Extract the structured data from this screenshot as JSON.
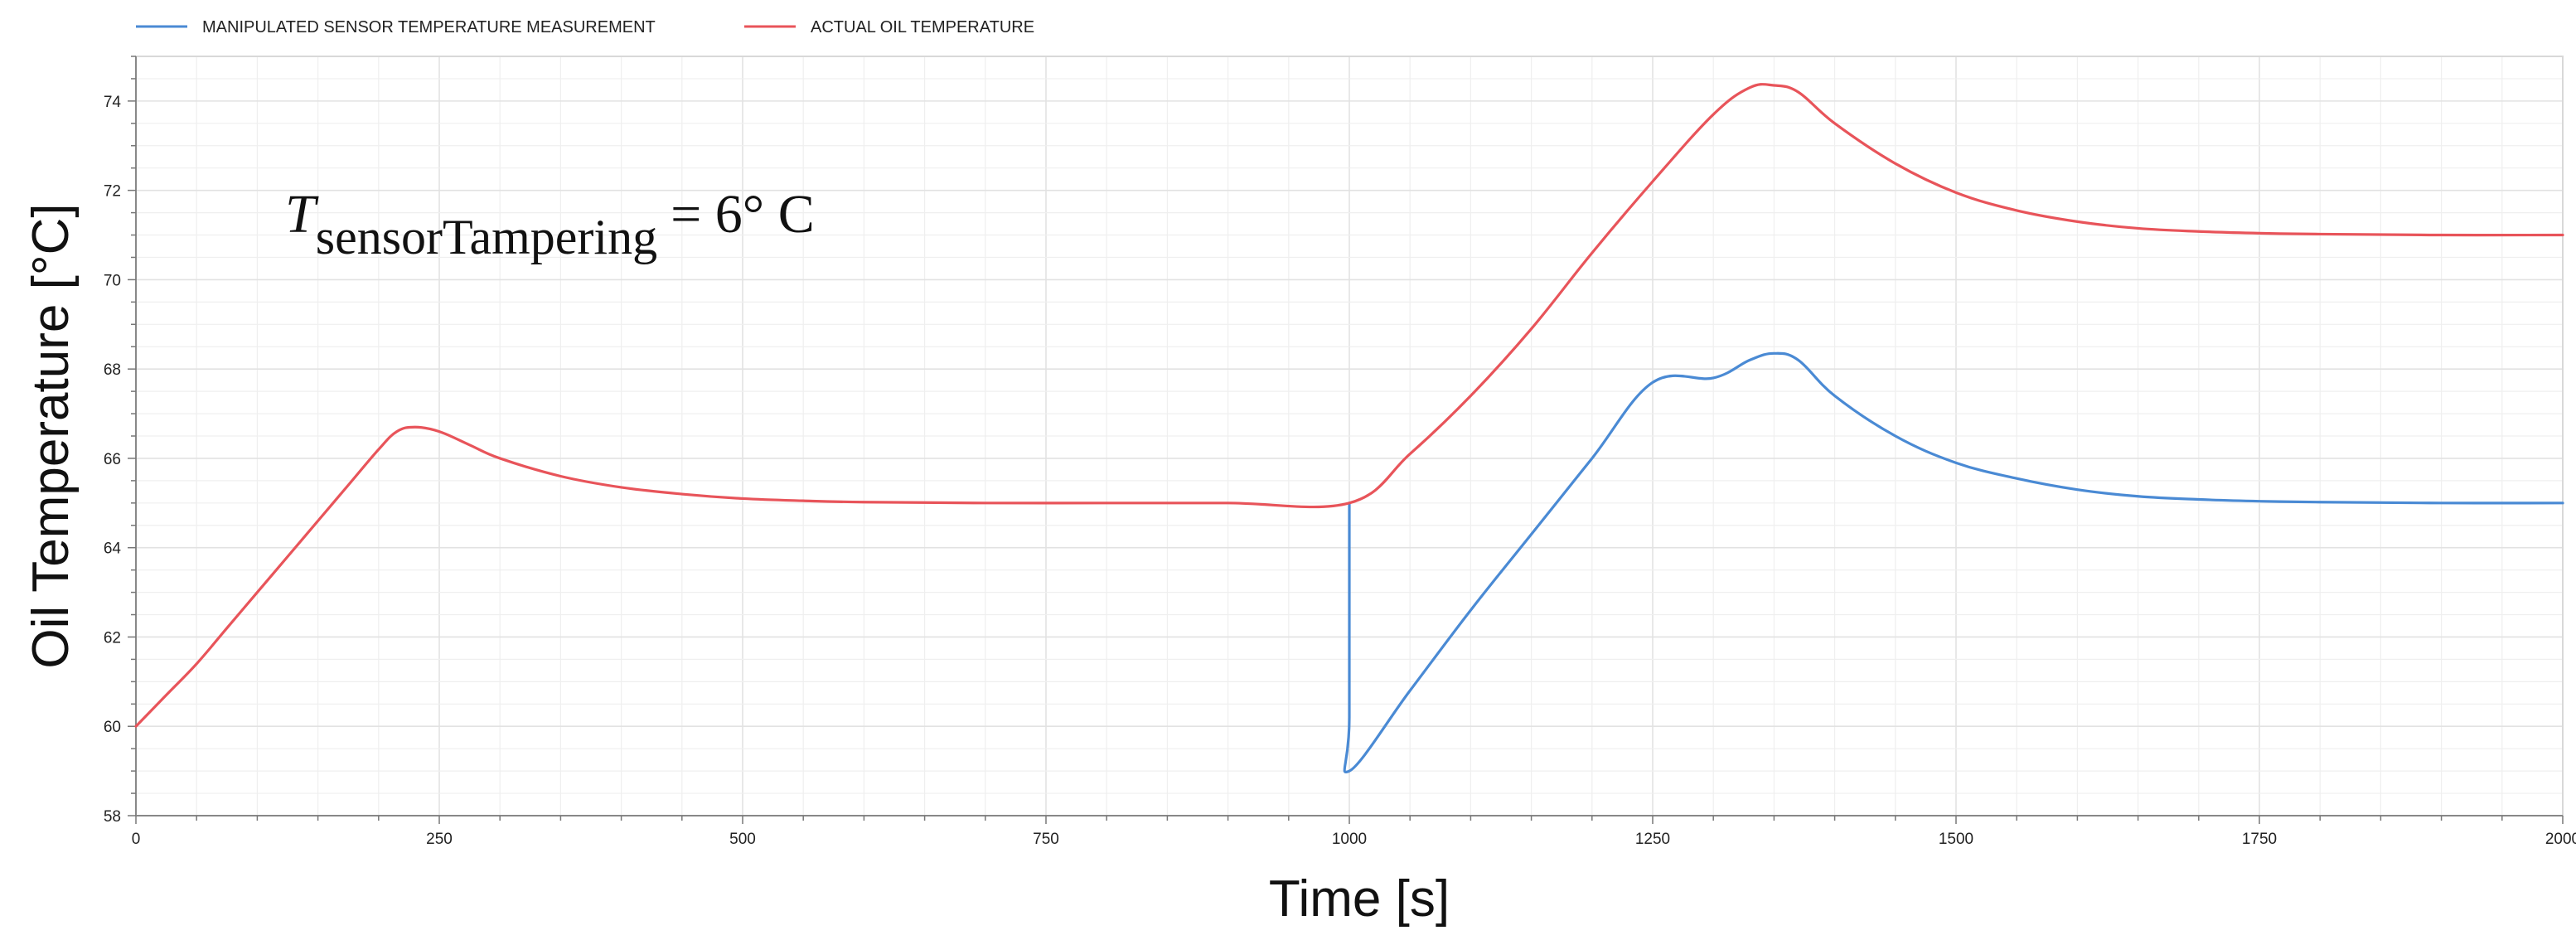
{
  "chart_data": {
    "type": "line",
    "title": "",
    "xlabel": "Time [s]",
    "ylabel": "Oil Temperature [°C]",
    "xlim": [
      0,
      2000
    ],
    "ylim": [
      58,
      75
    ],
    "xticks": [
      0,
      250,
      500,
      750,
      1000,
      1250,
      1500,
      1750,
      2000
    ],
    "yticks": [
      58,
      60,
      62,
      64,
      66,
      68,
      70,
      72,
      74
    ],
    "grid": true,
    "legend_position": "top-left",
    "annotation": {
      "symbol": "T",
      "subscript": "sensorTampering",
      "value": "= 6°  C"
    },
    "series": [
      {
        "name": "MANIPULATED SENSOR TEMPERATURE MEASUREMENT",
        "color": "#4a8ad4",
        "x": [
          1000,
          1000,
          1000,
          1050,
          1100,
          1150,
          1200,
          1250,
          1300,
          1330,
          1350,
          1370,
          1400,
          1450,
          1500,
          1550,
          1600,
          1650,
          1700,
          1750,
          1800,
          1900,
          2000
        ],
        "y": [
          65.0,
          60.2,
          59.0,
          60.8,
          62.6,
          64.3,
          66.0,
          67.7,
          67.8,
          68.2,
          68.35,
          68.2,
          67.4,
          66.5,
          65.9,
          65.55,
          65.3,
          65.15,
          65.08,
          65.04,
          65.02,
          65.0,
          65.0
        ]
      },
      {
        "name": "ACTUAL OIL TEMPERATURE",
        "color": "#e8545a",
        "x": [
          0,
          25,
          50,
          75,
          100,
          125,
          150,
          175,
          200,
          215,
          230,
          250,
          275,
          300,
          350,
          400,
          450,
          500,
          550,
          600,
          700,
          800,
          900,
          1000,
          1050,
          1100,
          1150,
          1200,
          1250,
          1300,
          1330,
          1350,
          1370,
          1400,
          1450,
          1500,
          1550,
          1600,
          1650,
          1700,
          1750,
          1800,
          1900,
          2000
        ],
        "y": [
          60.0,
          60.7,
          61.4,
          62.2,
          63.0,
          63.8,
          64.6,
          65.4,
          66.2,
          66.6,
          66.7,
          66.6,
          66.3,
          66.0,
          65.6,
          65.35,
          65.2,
          65.1,
          65.05,
          65.02,
          65.0,
          65.0,
          65.0,
          65.0,
          66.1,
          67.4,
          68.9,
          70.6,
          72.2,
          73.7,
          74.3,
          74.35,
          74.2,
          73.5,
          72.6,
          71.95,
          71.55,
          71.3,
          71.15,
          71.08,
          71.04,
          71.02,
          71.0,
          71.0
        ]
      }
    ]
  }
}
